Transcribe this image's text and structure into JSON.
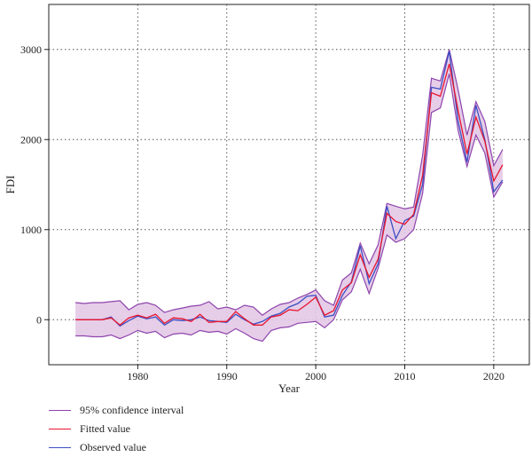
{
  "chart_data": {
    "type": "line",
    "title": "",
    "xlabel": "Year",
    "ylabel": "FDI",
    "xlim": [
      1970,
      2024
    ],
    "ylim": [
      -500,
      3500
    ],
    "xticks": [
      1980,
      1990,
      2000,
      2010,
      2020
    ],
    "yticks": [
      0,
      1000,
      2000,
      3000
    ],
    "grid": "dotted at ticks",
    "legend_position": "bottom-left",
    "x": [
      1973,
      1974,
      1975,
      1976,
      1977,
      1978,
      1979,
      1980,
      1981,
      1982,
      1983,
      1984,
      1985,
      1986,
      1987,
      1988,
      1989,
      1990,
      1991,
      1992,
      1993,
      1994,
      1995,
      1996,
      1997,
      1998,
      1999,
      2000,
      2001,
      2002,
      2003,
      2004,
      2005,
      2006,
      2007,
      2008,
      2009,
      2010,
      2011,
      2012,
      2013,
      2014,
      2015,
      2016,
      2017,
      2018,
      2019,
      2020,
      2021
    ],
    "series": [
      {
        "name": "95% confidence interval",
        "color": "#8e44ad",
        "fill": "#e3c8e6",
        "lower": [
          -180,
          -180,
          -190,
          -190,
          -170,
          -210,
          -170,
          -120,
          -150,
          -130,
          -200,
          -160,
          -150,
          -170,
          -120,
          -140,
          -130,
          -160,
          -100,
          -150,
          -210,
          -240,
          -120,
          -90,
          -80,
          -40,
          -30,
          -20,
          -90,
          0,
          220,
          310,
          560,
          290,
          570,
          940,
          860,
          900,
          1000,
          1400,
          2300,
          2350,
          2730,
          2100,
          1700,
          2050,
          1850,
          1360,
          1530
        ],
        "upper": [
          190,
          180,
          190,
          190,
          200,
          210,
          110,
          170,
          190,
          160,
          80,
          110,
          130,
          150,
          160,
          200,
          120,
          140,
          110,
          160,
          140,
          50,
          120,
          170,
          190,
          240,
          280,
          330,
          210,
          160,
          440,
          520,
          850,
          620,
          830,
          1290,
          1260,
          1230,
          1250,
          1820,
          2680,
          2650,
          3000,
          2550,
          2050,
          2420,
          2200,
          1710,
          1890
        ]
      },
      {
        "name": "Fitted value",
        "color": "#e8142e",
        "values": [
          0,
          0,
          0,
          0,
          20,
          -60,
          20,
          50,
          20,
          60,
          -40,
          20,
          10,
          -20,
          60,
          -30,
          -20,
          -20,
          90,
          10,
          -60,
          -60,
          30,
          50,
          110,
          100,
          170,
          250,
          50,
          100,
          330,
          410,
          720,
          470,
          670,
          1180,
          1090,
          1060,
          1170,
          1600,
          2520,
          2480,
          2840,
          2320,
          1840,
          2250,
          1980,
          1540,
          1720
        ]
      },
      {
        "name": "Observed value",
        "color": "#3b4fc4",
        "values": [
          0,
          0,
          0,
          0,
          30,
          -70,
          -10,
          40,
          10,
          30,
          -60,
          0,
          -10,
          0,
          30,
          -10,
          -20,
          -30,
          60,
          0,
          -50,
          -20,
          40,
          70,
          140,
          180,
          260,
          270,
          30,
          50,
          270,
          420,
          820,
          400,
          620,
          1260,
          900,
          1100,
          1150,
          1500,
          2580,
          2560,
          2980,
          2200,
          1750,
          2380,
          2000,
          1420,
          1550
        ]
      }
    ]
  }
}
